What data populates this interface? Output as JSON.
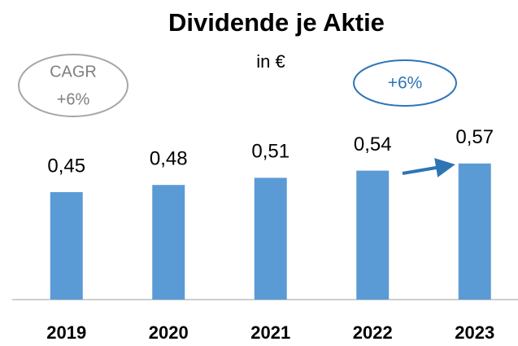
{
  "chart_data": {
    "type": "bar",
    "title": "Dividende je Aktie",
    "subtitle": "in €",
    "categories": [
      "2019",
      "2020",
      "2021",
      "2022",
      "2023"
    ],
    "values": [
      0.45,
      0.48,
      0.51,
      0.54,
      0.57
    ],
    "value_labels": [
      "0,45",
      "0,48",
      "0,51",
      "0,54",
      "0,57"
    ],
    "color": "#5b9bd5",
    "ylim": [
      0,
      0.6
    ],
    "annotations": [
      {
        "lines": [
          "CAGR",
          "+6%"
        ]
      },
      {
        "lines": [
          "+6%"
        ]
      }
    ]
  }
}
